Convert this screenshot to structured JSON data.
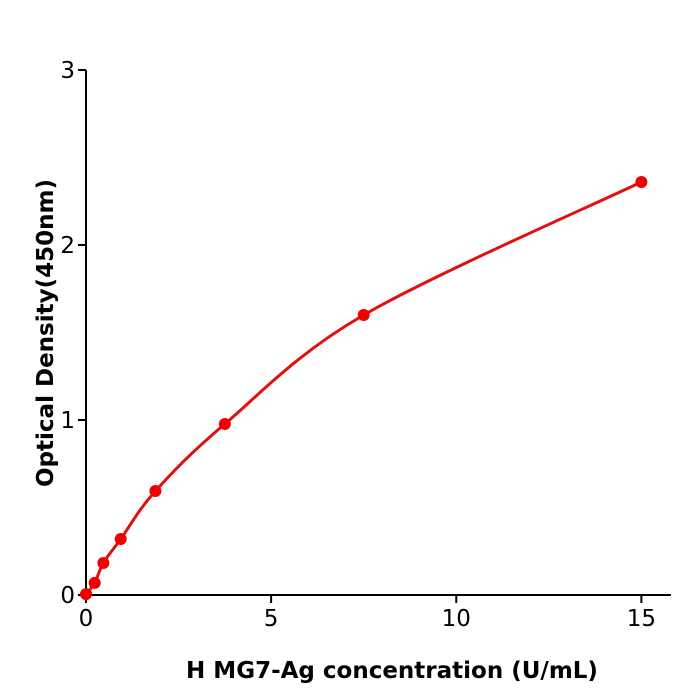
{
  "chart_data": {
    "type": "line",
    "title": "",
    "xlabel": "H  MG7-Ag concentration (U/mL)",
    "ylabel": "Optical Density(450nm)",
    "xlim": [
      0,
      15.8
    ],
    "ylim": [
      0,
      3
    ],
    "xticks": [
      0,
      5,
      10,
      15
    ],
    "yticks": [
      0,
      1,
      2,
      3
    ],
    "grid": false,
    "series": [
      {
        "x": [
          0,
          0.234,
          0.469,
          0.938,
          1.875,
          3.75,
          7.5,
          15
        ],
        "y": [
          0.005,
          0.069,
          0.183,
          0.32,
          0.594,
          0.977,
          1.6,
          2.36
        ],
        "color": "#e01010",
        "marker": "circle",
        "curve": "smooth fit"
      }
    ]
  }
}
